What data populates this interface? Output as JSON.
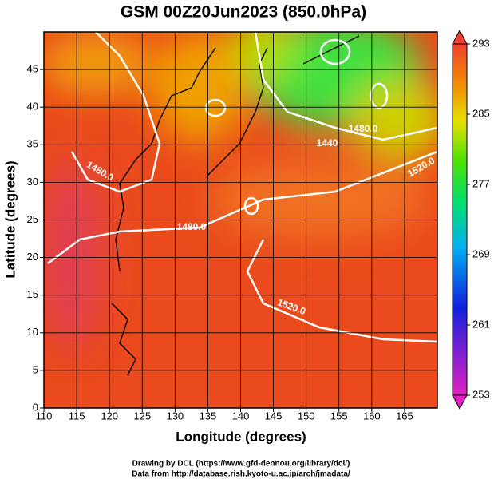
{
  "title": "GSM 00Z20Jun2023 (850.0hPa)",
  "x_axis": {
    "label": "Longitude (degrees)",
    "lim": [
      110,
      170
    ],
    "ticks": [
      110,
      115,
      120,
      125,
      130,
      135,
      140,
      145,
      150,
      155,
      160,
      165
    ]
  },
  "y_axis": {
    "label": "Latitude  (degrees)",
    "lim": [
      0,
      50
    ],
    "ticks": [
      0,
      5,
      10,
      15,
      20,
      25,
      30,
      35,
      40,
      45
    ]
  },
  "colorbar": {
    "lim": [
      253,
      293
    ],
    "ticks": [
      253,
      261,
      269,
      277,
      285,
      293
    ]
  },
  "contour_labels": [
    "1480.0",
    "1480.0",
    "1440",
    "1480.0",
    "1520.0",
    "1520.0"
  ],
  "credits": [
    "Drawing by DCL (https://www.gfd-dennou.org/library/dcl/)",
    "Data from http://database.rish.kyoto-u.ac.jp/arch/jmadata/"
  ]
}
